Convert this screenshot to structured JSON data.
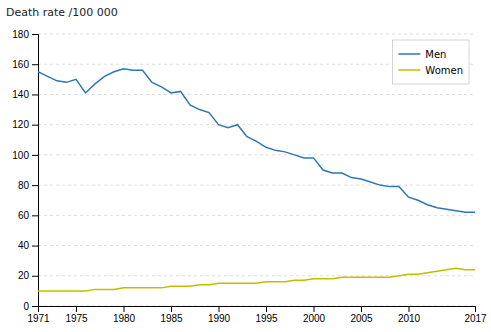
{
  "chart_data": {
    "type": "line",
    "title": "Death rate /100 000",
    "x": [
      1971,
      1972,
      1973,
      1974,
      1975,
      1976,
      1977,
      1978,
      1979,
      1980,
      1981,
      1982,
      1983,
      1984,
      1985,
      1986,
      1987,
      1988,
      1989,
      1990,
      1991,
      1992,
      1993,
      1994,
      1995,
      1996,
      1997,
      1998,
      1999,
      2000,
      2001,
      2002,
      2003,
      2004,
      2005,
      2006,
      2007,
      2008,
      2009,
      2010,
      2011,
      2012,
      2013,
      2014,
      2015,
      2016,
      2017
    ],
    "series": [
      {
        "name": "Men",
        "color": "#2E75B6",
        "values": [
          155,
          152,
          149,
          148,
          150,
          141,
          147,
          152,
          155,
          157,
          156,
          156,
          148,
          145,
          141,
          142,
          133,
          130,
          128,
          120,
          118,
          120,
          112,
          109,
          105,
          103,
          102,
          100,
          98,
          98,
          90,
          88,
          88,
          85,
          84,
          82,
          80,
          79,
          79,
          72,
          70,
          67,
          65,
          64,
          63,
          62,
          62
        ]
      },
      {
        "name": "Women",
        "color": "#BFBF00",
        "values": [
          10,
          10,
          10,
          10,
          10,
          10,
          11,
          11,
          11,
          12,
          12,
          12,
          12,
          12,
          13,
          13,
          13,
          14,
          14,
          15,
          15,
          15,
          15,
          15,
          16,
          16,
          16,
          17,
          17,
          18,
          18,
          18,
          19,
          19,
          19,
          19,
          19,
          19,
          20,
          21,
          21,
          22,
          23,
          24,
          25,
          24,
          24
        ]
      }
    ],
    "xlim": [
      1971,
      2017
    ],
    "xticks": [
      1971,
      1975,
      1980,
      1985,
      1990,
      1995,
      2000,
      2005,
      2010,
      2017
    ],
    "ylim": [
      0,
      180
    ],
    "yticks": [
      0,
      20,
      40,
      60,
      80,
      100,
      120,
      140,
      160,
      180
    ],
    "grid": true,
    "legend": "upper right"
  }
}
